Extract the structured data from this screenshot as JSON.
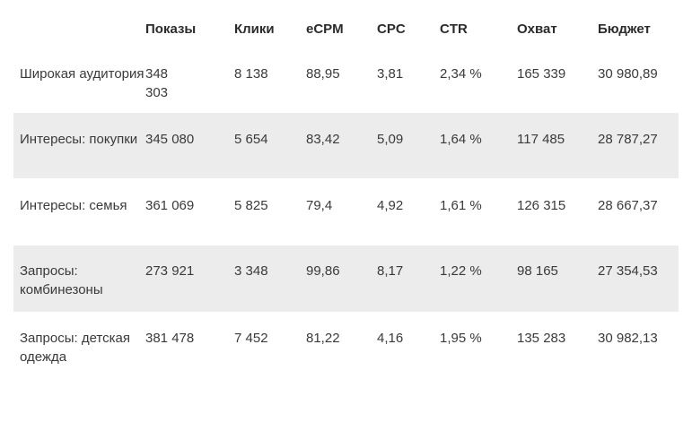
{
  "table": {
    "headers": [
      "",
      "Показы",
      "Клики",
      "eCPM",
      "CPC",
      "CTR",
      "Охват",
      "Бюджет"
    ],
    "rows": [
      {
        "segment": "Широкая аудитория",
        "impressions": "348 303",
        "clicks": "8 138",
        "ecpm": "88,95",
        "cpc": "3,81",
        "ctr": "2,34 %",
        "reach": "165 339",
        "budget": "30 980,89",
        "shaded": false
      },
      {
        "segment": "Интересы: покупки",
        "impressions": "345 080",
        "clicks": "5 654",
        "ecpm": "83,42",
        "cpc": "5,09",
        "ctr": "1,64 %",
        "reach": "117 485",
        "budget": "28 787,27",
        "shaded": true
      },
      {
        "segment": "Интересы: семья",
        "impressions": "361 069",
        "clicks": "5 825",
        "ecpm": "79,4",
        "cpc": "4,92",
        "ctr": "1,61 %",
        "reach": "126 315",
        "budget": "28 667,37",
        "shaded": false
      },
      {
        "segment": "Запросы: комбинезоны",
        "impressions": "273 921",
        "clicks": "3 348",
        "ecpm": "99,86",
        "cpc": "8,17",
        "ctr": "1,22 %",
        "reach": "98 165",
        "budget": "27 354,53",
        "shaded": true
      },
      {
        "segment": "Запросы: детская одежда",
        "impressions": "381 478",
        "clicks": "7 452",
        "ecpm": "81,22",
        "cpc": "4,16",
        "ctr": "1,95 %",
        "reach": "135 283",
        "budget": "30 982,13",
        "shaded": false
      }
    ],
    "row_shade_color": "#ececec"
  }
}
